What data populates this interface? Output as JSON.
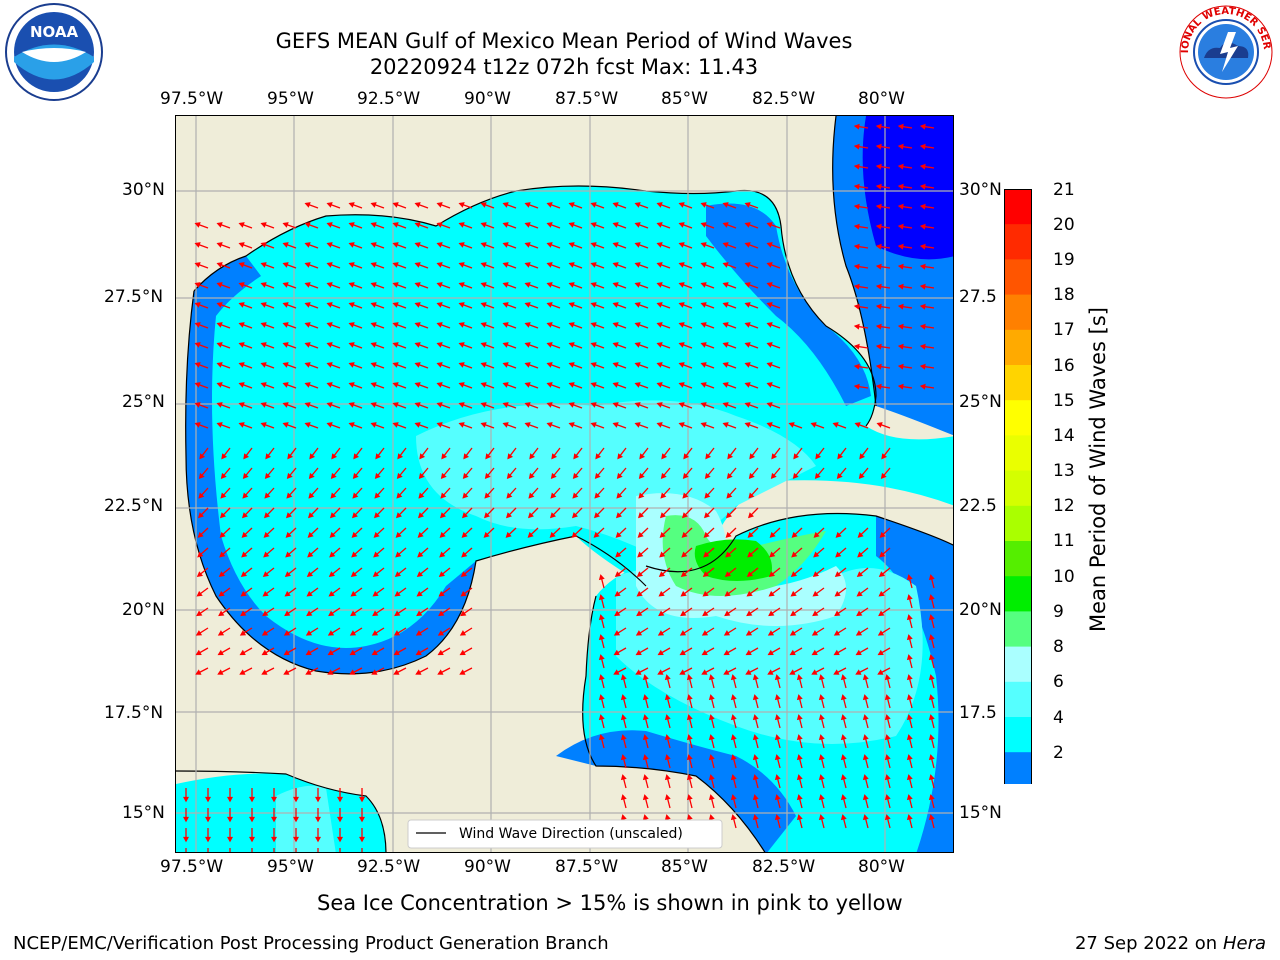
{
  "header": {
    "title_line1": "GEFS MEAN Gulf of Mexico Mean Period of Wind Waves",
    "title_line2": "20220924 t12z 072h fcst   Max: 11.43"
  },
  "logos": {
    "left": "NOAA",
    "right": "NATIONAL WEATHER SERVICE"
  },
  "axes": {
    "lon_labels": [
      "97.5°W",
      "95°W",
      "92.5°W",
      "90°W",
      "87.5°W",
      "85°W",
      "82.5°W",
      "80°W"
    ],
    "lat_labels": [
      "30°N",
      "27.5°N",
      "25°N",
      "22.5°N",
      "20°N",
      "17.5°N",
      "15°N"
    ],
    "lat_labels_right": [
      "30°N",
      "27.5",
      "25°N",
      "22.5",
      "20°N",
      "17.5",
      "15°N"
    ]
  },
  "legend": {
    "label": "Wind Wave Direction (unscaled)"
  },
  "colorbar": {
    "label": "Mean Period of Wind Waves [s]",
    "ticks": [
      "21",
      "20",
      "19",
      "18",
      "17",
      "16",
      "15",
      "14",
      "13",
      "12",
      "11",
      "10",
      "9",
      "8",
      "6",
      "4",
      "2"
    ],
    "colors": [
      "#ff0000",
      "#ff2a00",
      "#ff5500",
      "#ff8000",
      "#ffaa00",
      "#ffd400",
      "#ffff00",
      "#eaff00",
      "#d4ff00",
      "#aaff00",
      "#55ee00",
      "#00ee00",
      "#55ff80",
      "#aaffff",
      "#55ffff",
      "#00ffff",
      "#0080ff"
    ],
    "extend_color": "#0000ff"
  },
  "notes": {
    "ice": "Sea Ice Concentration > 15% is shown in pink to yellow",
    "org": "NCEP/EMC/Verification Post Processing Product Generation Branch",
    "date": "27 Sep 2022 on",
    "host": "Hera"
  }
}
